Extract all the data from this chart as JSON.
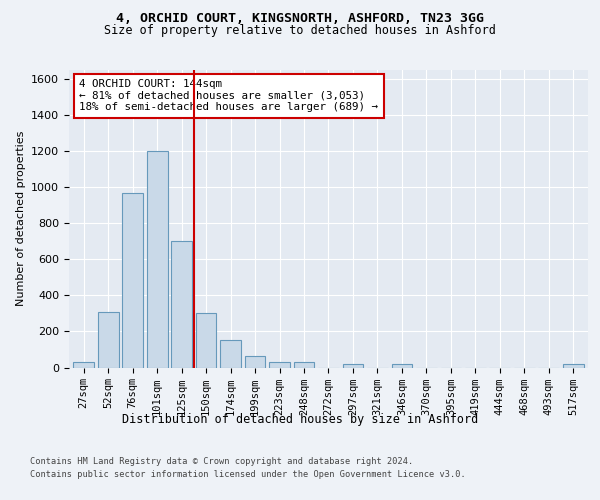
{
  "title_line1": "4, ORCHID COURT, KINGSNORTH, ASHFORD, TN23 3GG",
  "title_line2": "Size of property relative to detached houses in Ashford",
  "xlabel": "Distribution of detached houses by size in Ashford",
  "ylabel": "Number of detached properties",
  "bar_labels": [
    "27sqm",
    "52sqm",
    "76sqm",
    "101sqm",
    "125sqm",
    "150sqm",
    "174sqm",
    "199sqm",
    "223sqm",
    "248sqm",
    "272sqm",
    "297sqm",
    "321sqm",
    "346sqm",
    "370sqm",
    "395sqm",
    "419sqm",
    "444sqm",
    "468sqm",
    "493sqm",
    "517sqm"
  ],
  "bar_values": [
    30,
    310,
    970,
    1200,
    700,
    300,
    155,
    65,
    30,
    30,
    0,
    20,
    0,
    20,
    0,
    0,
    0,
    0,
    0,
    0,
    20
  ],
  "bar_color": "#c9d9e8",
  "bar_edgecolor": "#6699bb",
  "property_line_x": 4.5,
  "annotation_line1": "4 ORCHID COURT: 144sqm",
  "annotation_line2": "← 81% of detached houses are smaller (3,053)",
  "annotation_line3": "18% of semi-detached houses are larger (689) →",
  "vline_color": "#cc0000",
  "annotation_box_edgecolor": "#cc0000",
  "ylim": [
    0,
    1650
  ],
  "yticks": [
    0,
    200,
    400,
    600,
    800,
    1000,
    1200,
    1400,
    1600
  ],
  "footer_line1": "Contains HM Land Registry data © Crown copyright and database right 2024.",
  "footer_line2": "Contains public sector information licensed under the Open Government Licence v3.0.",
  "background_color": "#eef2f7",
  "plot_bg_color": "#e4eaf2"
}
